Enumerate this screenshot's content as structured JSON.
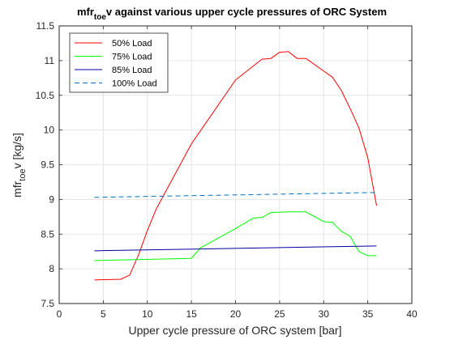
{
  "chart_data": {
    "type": "line",
    "title": {
      "main_before": "mfr",
      "main_sub": "toe",
      "main_after": "v against various upper cycle pressures of ORC System"
    },
    "xlabel": "Upper cycle pressure of ORC system [bar]",
    "ylabel": {
      "before": "mfr",
      "sub": "toe",
      "after": "v [kg/s]"
    },
    "xlim": [
      0,
      40
    ],
    "ylim": [
      7.5,
      11.5
    ],
    "xticks": [
      0,
      5,
      10,
      15,
      20,
      25,
      30,
      35,
      40
    ],
    "yticks": [
      7.5,
      8,
      8.5,
      9,
      9.5,
      10,
      10.5,
      11,
      11.5
    ],
    "grid": true,
    "legend_position": "top-left",
    "series": [
      {
        "name": "50% Load",
        "color": "#ff0000",
        "dash": "solid",
        "x": [
          4,
          7,
          8,
          9,
          10,
          11,
          15,
          20,
          23,
          24,
          25,
          26,
          27,
          28,
          30,
          31,
          32,
          33,
          34,
          35,
          36
        ],
        "y": [
          7.84,
          7.85,
          7.91,
          8.2,
          8.55,
          8.86,
          9.8,
          10.72,
          11.02,
          11.03,
          11.12,
          11.13,
          11.03,
          11.03,
          10.85,
          10.76,
          10.57,
          10.31,
          10.03,
          9.6,
          8.91
        ]
      },
      {
        "name": "75% Load",
        "color": "#00ff00",
        "dash": "solid",
        "x": [
          4,
          15,
          16,
          20,
          22,
          23,
          24,
          26,
          28,
          30,
          31,
          32,
          33,
          34,
          35,
          36
        ],
        "y": [
          8.12,
          8.15,
          8.3,
          8.58,
          8.73,
          8.74,
          8.81,
          8.82,
          8.82,
          8.68,
          8.67,
          8.54,
          8.47,
          8.25,
          8.19,
          8.19
        ]
      },
      {
        "name": "85% Load",
        "color": "#0000a0",
        "dash": "solid",
        "x": [
          4,
          36
        ],
        "y": [
          8.26,
          8.33
        ]
      },
      {
        "name": "100% Load",
        "color": "#0072bd",
        "dash": "dashed",
        "x": [
          4,
          36
        ],
        "y": [
          9.03,
          9.1
        ]
      }
    ]
  }
}
